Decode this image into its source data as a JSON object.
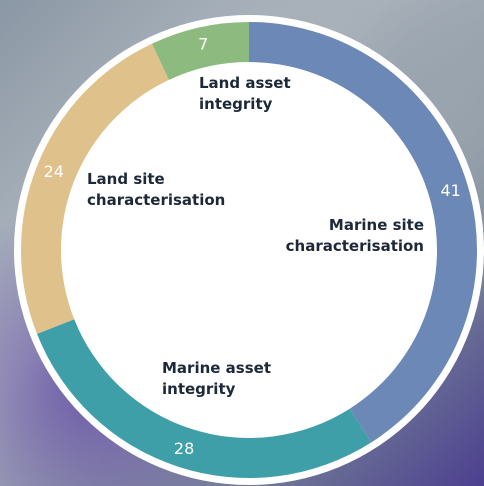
{
  "chart_data": {
    "type": "donut",
    "categories": [
      "Marine site characterisation",
      "Marine asset integrity",
      "Land site characterisation",
      "Land asset integrity"
    ],
    "values": [
      41,
      28,
      24,
      7
    ],
    "colors": [
      "#6b88b6",
      "#3f9fa9",
      "#dfc18b",
      "#8dbb7f"
    ]
  }
}
